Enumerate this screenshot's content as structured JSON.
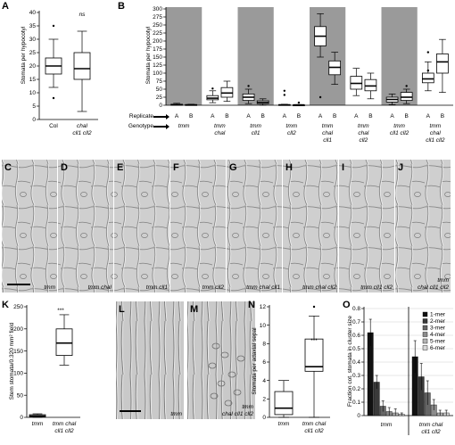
{
  "panels": {
    "A": {
      "label": "A",
      "ylabel": "Stomata per hypocotyl",
      "yticks": [
        "0",
        "5",
        "10",
        "15",
        "20",
        "25",
        "30",
        "35",
        "40"
      ],
      "xlabels": [
        [
          "Col"
        ],
        [
          "chal",
          "cll1 cll2"
        ]
      ],
      "annotation": "ns",
      "boxes": [
        {
          "q1": 17,
          "median": 20,
          "q3": 23,
          "lo": 12,
          "hi": 30,
          "outliers": [
            35,
            8
          ]
        },
        {
          "q1": 15,
          "median": 19,
          "q3": 25,
          "lo": 3,
          "hi": 33,
          "outliers": []
        }
      ]
    },
    "B": {
      "label": "B",
      "ylabel": "Stomata per hypocotyl",
      "yticks": [
        "0",
        "25",
        "50",
        "75",
        "100",
        "125",
        "150",
        "175",
        "200",
        "225",
        "250",
        "275",
        "300"
      ],
      "replicate_label": "Replicate",
      "genotype_label": "Genotype",
      "groups": [
        {
          "name": [
            "tmm"
          ],
          "shaded": true,
          "reps": [
            {
              "rep": "A",
              "q1": 0,
              "median": 1,
              "q3": 3,
              "lo": 0,
              "hi": 6,
              "outliers": []
            },
            {
              "rep": "B",
              "q1": 0,
              "median": 1,
              "q3": 2,
              "lo": 0,
              "hi": 3,
              "outliers": []
            }
          ]
        },
        {
          "name": [
            "tmm",
            "chal"
          ],
          "shaded": false,
          "reps": [
            {
              "rep": "A",
              "q1": 17,
              "median": 22,
              "q3": 30,
              "lo": 8,
              "hi": 45,
              "outliers": [
                52
              ]
            },
            {
              "rep": "B",
              "q1": 25,
              "median": 38,
              "q3": 55,
              "lo": 12,
              "hi": 75,
              "outliers": []
            }
          ]
        },
        {
          "name": [
            "tmm",
            "cll1"
          ],
          "shaded": true,
          "reps": [
            {
              "rep": "A",
              "q1": 15,
              "median": 25,
              "q3": 35,
              "lo": 5,
              "hi": 50,
              "outliers": [
                60
              ]
            },
            {
              "rep": "B",
              "q1": 5,
              "median": 9,
              "q3": 14,
              "lo": 0,
              "hi": 20,
              "outliers": []
            }
          ]
        },
        {
          "name": [
            "tmm",
            "cll2"
          ],
          "shaded": false,
          "reps": [
            {
              "rep": "A",
              "q1": 0,
              "median": 1,
              "q3": 2,
              "lo": 0,
              "hi": 3,
              "outliers": [
                32,
                45
              ]
            },
            {
              "rep": "B",
              "q1": 0,
              "median": 1,
              "q3": 1,
              "lo": 0,
              "hi": 2,
              "outliers": [
                8
              ]
            }
          ]
        },
        {
          "name": [
            "tmm",
            "chal",
            "cll1"
          ],
          "shaded": true,
          "reps": [
            {
              "rep": "A",
              "q1": 185,
              "median": 215,
              "q3": 245,
              "lo": 150,
              "hi": 285,
              "outliers": [
                25
              ]
            },
            {
              "rep": "B",
              "q1": 95,
              "median": 118,
              "q3": 138,
              "lo": 65,
              "hi": 165,
              "outliers": []
            }
          ]
        },
        {
          "name": [
            "tmm",
            "chal",
            "cll2"
          ],
          "shaded": false,
          "reps": [
            {
              "rep": "A",
              "q1": 50,
              "median": 68,
              "q3": 90,
              "lo": 30,
              "hi": 115,
              "outliers": []
            },
            {
              "rep": "B",
              "q1": 45,
              "median": 60,
              "q3": 80,
              "lo": 20,
              "hi": 100,
              "outliers": []
            }
          ]
        },
        {
          "name": [
            "tmm",
            "cll1 cll2"
          ],
          "shaded": true,
          "reps": [
            {
              "rep": "A",
              "q1": 10,
              "median": 18,
              "q3": 25,
              "lo": 2,
              "hi": 35,
              "outliers": []
            },
            {
              "rep": "B",
              "q1": 15,
              "median": 25,
              "q3": 40,
              "lo": 5,
              "hi": 50,
              "outliers": [
                60
              ]
            }
          ]
        },
        {
          "name": [
            "tmm",
            "chal",
            "cll1 cll2"
          ],
          "shaded": false,
          "reps": [
            {
              "rep": "A",
              "q1": 70,
              "median": 82,
              "q3": 100,
              "lo": 45,
              "hi": 135,
              "outliers": [
                165,
                108
              ]
            },
            {
              "rep": "B",
              "q1": 100,
              "median": 135,
              "q3": 160,
              "lo": 40,
              "hi": 205,
              "outliers": []
            }
          ]
        }
      ]
    },
    "micrographs": [
      {
        "label": "C",
        "caption": [
          "tmm"
        ]
      },
      {
        "label": "D",
        "caption": [
          "tmm chal"
        ]
      },
      {
        "label": "E",
        "caption": [
          "tmm cll1"
        ]
      },
      {
        "label": "F",
        "caption": [
          "tmm cll2"
        ]
      },
      {
        "label": "G",
        "caption": [
          "tmm chal cll1"
        ]
      },
      {
        "label": "H",
        "caption": [
          "tmm chal cll2"
        ]
      },
      {
        "label": "I",
        "caption": [
          "tmm cll1 cll2"
        ]
      },
      {
        "label": "J",
        "caption": [
          "tmm",
          "chal cll1 cll2"
        ]
      },
      {
        "label": "L",
        "caption": [
          "tmm"
        ]
      },
      {
        "label": "M",
        "caption": [
          "tmm",
          "chal cll1 cll2"
        ]
      }
    ],
    "K": {
      "label": "K",
      "ylabel": "Stem stomata/0.320 mm² field",
      "yticks": [
        "0",
        "50",
        "100",
        "150",
        "200",
        "250"
      ],
      "xlabels": [
        [
          "tmm"
        ],
        [
          "tmm chal",
          "cll1 cll2"
        ]
      ],
      "annotation": "***",
      "boxes": [
        {
          "q1": 1,
          "median": 3,
          "q3": 6,
          "lo": 0,
          "hi": 8,
          "outliers": []
        },
        {
          "q1": 140,
          "median": 168,
          "q3": 200,
          "lo": 118,
          "hi": 232,
          "outliers": []
        }
      ]
    },
    "N": {
      "label": "N",
      "ylabel": "Stomata per adaxial sepal",
      "yticks": [
        "0",
        "2",
        "4",
        "6",
        "8",
        "10",
        "12"
      ],
      "xlabels": [
        [
          "tmm"
        ],
        [
          "tmm chal",
          "cll1 cll2"
        ]
      ],
      "annotation": "***",
      "boxes": [
        {
          "q1": 0.3,
          "median": 1,
          "q3": 2.8,
          "lo": 0,
          "hi": 4,
          "outliers": []
        },
        {
          "q1": 5,
          "median": 5.5,
          "q3": 8.5,
          "lo": 0,
          "hi": 11,
          "outliers": [
            12
          ]
        }
      ]
    },
    "O": {
      "label": "O",
      "ylabel": "Fraction cot. stomata in cluster size",
      "yticks": [
        "0",
        "0.1",
        "0.2",
        "0.3",
        "0.4",
        "0.5",
        "0.6",
        "0.7",
        "0.8"
      ],
      "groups": [
        [
          "tmm"
        ],
        [
          "tmm chal",
          "cll1 cll2"
        ]
      ],
      "legend": [
        "1-mer",
        "2-mer",
        "3-mer",
        "4-mer",
        "5-mer",
        "6-mer"
      ],
      "series_colors": [
        "#111111",
        "#3a3a3a",
        "#666666",
        "#8c8c8c",
        "#b4b4b4",
        "#d8d8d8"
      ],
      "values": [
        [
          0.62,
          0.25,
          0.07,
          0.03,
          0.02,
          0.01
        ],
        [
          0.44,
          0.29,
          0.17,
          0.08,
          0.02,
          0.02
        ]
      ],
      "errors": [
        [
          0.1,
          0.05,
          0.04,
          0.03,
          0.03,
          0.01
        ],
        [
          0.12,
          0.1,
          0.09,
          0.04,
          0.02,
          0.02
        ]
      ]
    },
    "scale_bar_color": "#000000",
    "shade_color": "#9a9a9a"
  }
}
